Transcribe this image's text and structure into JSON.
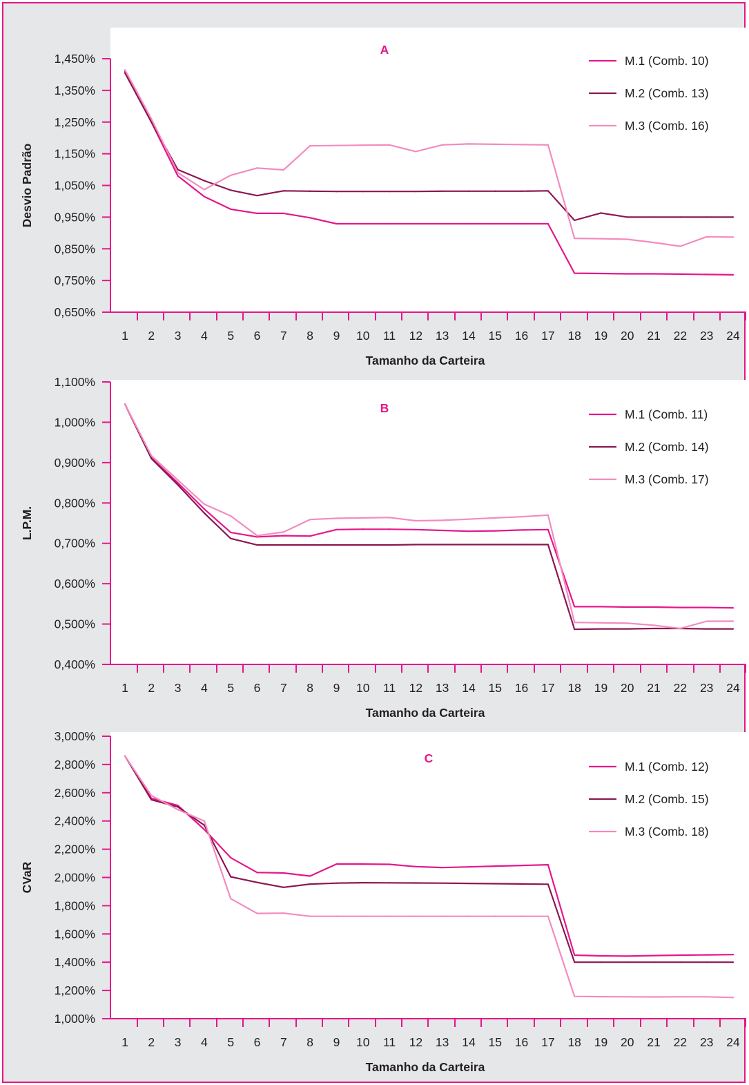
{
  "colors": {
    "accent": "#e5168c",
    "M1": "#e5168c",
    "M2": "#8b1752",
    "M3": "#f38bbf",
    "plot_bg": "#ffffff",
    "figure_bg": "#e6e7e8"
  },
  "chart_data": [
    {
      "type": "line",
      "panel": "A",
      "title": "",
      "xlabel": "Tamanho da Carteira",
      "ylabel": "Desvio Padrão",
      "x": [
        1,
        2,
        3,
        4,
        5,
        6,
        7,
        8,
        9,
        10,
        11,
        12,
        13,
        14,
        15,
        16,
        17,
        18,
        19,
        20,
        21,
        22,
        23,
        24
      ],
      "ylim": [
        0.65,
        1.45
      ],
      "yticks": [
        "0,650%",
        "0,750%",
        "0,850%",
        "0,950%",
        "1,050%",
        "1,150%",
        "1,250%",
        "1,350%",
        "1,450%"
      ],
      "legend_position": "top-right",
      "series": [
        {
          "name": "M.1 (Comb. 10)",
          "values": [
            1.41,
            1.25,
            1.08,
            1.015,
            0.975,
            0.962,
            0.962,
            0.948,
            0.929,
            0.929,
            0.929,
            0.929,
            0.929,
            0.929,
            0.929,
            0.929,
            0.929,
            0.773,
            0.772,
            0.771,
            0.771,
            0.77,
            0.769,
            0.768
          ]
        },
        {
          "name": "M.2 (Comb. 13)",
          "values": [
            1.405,
            1.25,
            1.1,
            1.065,
            1.035,
            1.018,
            1.033,
            1.032,
            1.031,
            1.031,
            1.031,
            1.031,
            1.032,
            1.032,
            1.032,
            1.032,
            1.033,
            0.94,
            0.963,
            0.95,
            0.95,
            0.95,
            0.95,
            0.95
          ]
        },
        {
          "name": "M.3 (Comb. 16)",
          "values": [
            1.415,
            1.26,
            1.09,
            1.037,
            1.082,
            1.105,
            1.099,
            1.175,
            1.176,
            1.177,
            1.178,
            1.157,
            1.178,
            1.181,
            1.18,
            1.179,
            1.178,
            0.883,
            0.882,
            0.88,
            0.87,
            0.858,
            0.888,
            0.887
          ]
        }
      ]
    },
    {
      "type": "line",
      "panel": "B",
      "title": "",
      "xlabel": "Tamanho da Carteira",
      "ylabel": "L.P.M.",
      "x": [
        1,
        2,
        3,
        4,
        5,
        6,
        7,
        8,
        9,
        10,
        11,
        12,
        13,
        14,
        15,
        16,
        17,
        18,
        19,
        20,
        21,
        22,
        23,
        24
      ],
      "ylim": [
        0.4,
        1.1
      ],
      "yticks": [
        "0,400%",
        "0,500%",
        "0,600%",
        "0,700%",
        "0,800%",
        "0,900%",
        "1,000%",
        "1,100%"
      ],
      "legend_position": "top-right",
      "series": [
        {
          "name": "M.1 (Comb. 11)",
          "values": [
            1.045,
            0.912,
            0.85,
            0.785,
            0.727,
            0.716,
            0.719,
            0.718,
            0.734,
            0.735,
            0.735,
            0.734,
            0.732,
            0.73,
            0.731,
            0.733,
            0.734,
            0.543,
            0.543,
            0.542,
            0.542,
            0.541,
            0.541,
            0.54
          ]
        },
        {
          "name": "M.2 (Comb. 14)",
          "values": [
            1.045,
            0.91,
            0.845,
            0.775,
            0.712,
            0.696,
            0.696,
            0.696,
            0.696,
            0.696,
            0.696,
            0.697,
            0.697,
            0.697,
            0.697,
            0.697,
            0.697,
            0.487,
            0.488,
            0.488,
            0.489,
            0.489,
            0.488,
            0.488
          ]
        },
        {
          "name": "M.3 (Comb. 17)",
          "values": [
            1.045,
            0.917,
            0.857,
            0.797,
            0.768,
            0.719,
            0.728,
            0.759,
            0.762,
            0.763,
            0.764,
            0.756,
            0.757,
            0.76,
            0.763,
            0.766,
            0.77,
            0.504,
            0.503,
            0.502,
            0.497,
            0.489,
            0.507,
            0.507
          ]
        }
      ]
    },
    {
      "type": "line",
      "panel": "C",
      "title": "",
      "xlabel": "Tamanho da Carteira",
      "ylabel": "CVaR",
      "x": [
        1,
        2,
        3,
        4,
        5,
        6,
        7,
        8,
        9,
        10,
        11,
        12,
        13,
        14,
        15,
        16,
        17,
        18,
        19,
        20,
        21,
        22,
        23,
        24
      ],
      "ylim": [
        1.0,
        3.0
      ],
      "yticks": [
        "1,000%",
        "1,200%",
        "1,400%",
        "1,600%",
        "1,800%",
        "2,000%",
        "2,200%",
        "2,400%",
        "2,600%",
        "2,800%",
        "3,000%"
      ],
      "legend_position": "top-right",
      "series": [
        {
          "name": "M.1 (Comb. 12)",
          "values": [
            2.86,
            2.56,
            2.51,
            2.34,
            2.14,
            2.035,
            2.032,
            2.01,
            2.095,
            2.095,
            2.093,
            2.077,
            2.07,
            2.075,
            2.08,
            2.085,
            2.09,
            1.45,
            1.445,
            1.443,
            1.447,
            1.45,
            1.452,
            1.454
          ]
        },
        {
          "name": "M.2 (Comb. 15)",
          "values": [
            2.86,
            2.55,
            2.5,
            2.37,
            2.005,
            1.965,
            1.93,
            1.953,
            1.96,
            1.963,
            1.962,
            1.961,
            1.96,
            1.958,
            1.956,
            1.954,
            1.952,
            1.4,
            1.4,
            1.4,
            1.4,
            1.4,
            1.4,
            1.4
          ]
        },
        {
          "name": "M.3 (Comb. 18)",
          "values": [
            2.86,
            2.58,
            2.48,
            2.4,
            1.85,
            1.745,
            1.747,
            1.725,
            1.725,
            1.725,
            1.725,
            1.725,
            1.725,
            1.725,
            1.725,
            1.725,
            1.725,
            1.158,
            1.156,
            1.155,
            1.154,
            1.155,
            1.155,
            1.15
          ]
        }
      ]
    }
  ]
}
